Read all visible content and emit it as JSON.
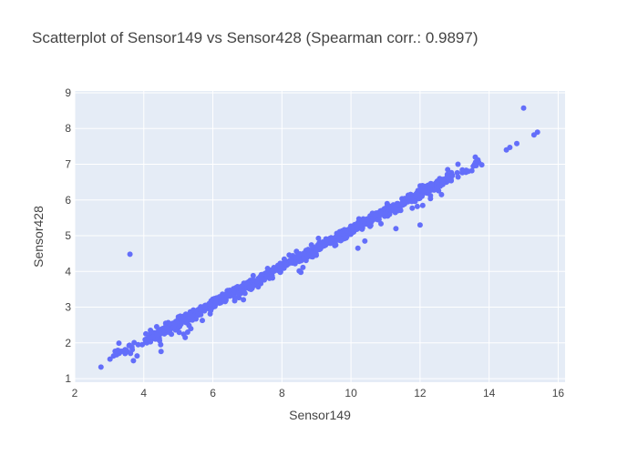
{
  "chart_data": {
    "type": "scatter",
    "title": "Scatterplot of Sensor149 vs Sensor428 (Spearman corr.: 0.9897)",
    "xlabel": "Sensor149",
    "ylabel": "Sensor428",
    "xlim": [
      2,
      16.2
    ],
    "ylim": [
      0.9,
      9.05
    ],
    "xticks": [
      2,
      4,
      6,
      8,
      10,
      12,
      14,
      16
    ],
    "yticks": [
      1,
      2,
      3,
      4,
      5,
      6,
      7,
      8,
      9
    ],
    "grid": true,
    "plot_bg": "#E5ECF6",
    "marker_color": "#636EFA",
    "main_band": {
      "x_start": 2.7,
      "x_end": 13.8,
      "y_at_start": 1.38,
      "y_at_end": 7.12,
      "point_count": 1000
    },
    "outliers": [
      {
        "x": 3.6,
        "y": 4.48
      },
      {
        "x": 15.0,
        "y": 8.57
      },
      {
        "x": 14.5,
        "y": 7.4
      },
      {
        "x": 14.6,
        "y": 7.47
      },
      {
        "x": 14.8,
        "y": 7.58
      },
      {
        "x": 15.3,
        "y": 7.82
      },
      {
        "x": 15.4,
        "y": 7.9
      },
      {
        "x": 13.7,
        "y": 7.05
      },
      {
        "x": 13.6,
        "y": 7.2
      },
      {
        "x": 13.1,
        "y": 7.0
      },
      {
        "x": 13.4,
        "y": 6.8
      },
      {
        "x": 13.5,
        "y": 6.82
      },
      {
        "x": 12.8,
        "y": 6.85
      },
      {
        "x": 12.9,
        "y": 6.55
      },
      {
        "x": 3.7,
        "y": 1.5
      },
      {
        "x": 4.5,
        "y": 1.76
      },
      {
        "x": 5.2,
        "y": 2.15
      },
      {
        "x": 10.2,
        "y": 4.65
      },
      {
        "x": 10.4,
        "y": 4.85
      },
      {
        "x": 12.0,
        "y": 5.3
      },
      {
        "x": 11.3,
        "y": 5.2
      }
    ]
  }
}
